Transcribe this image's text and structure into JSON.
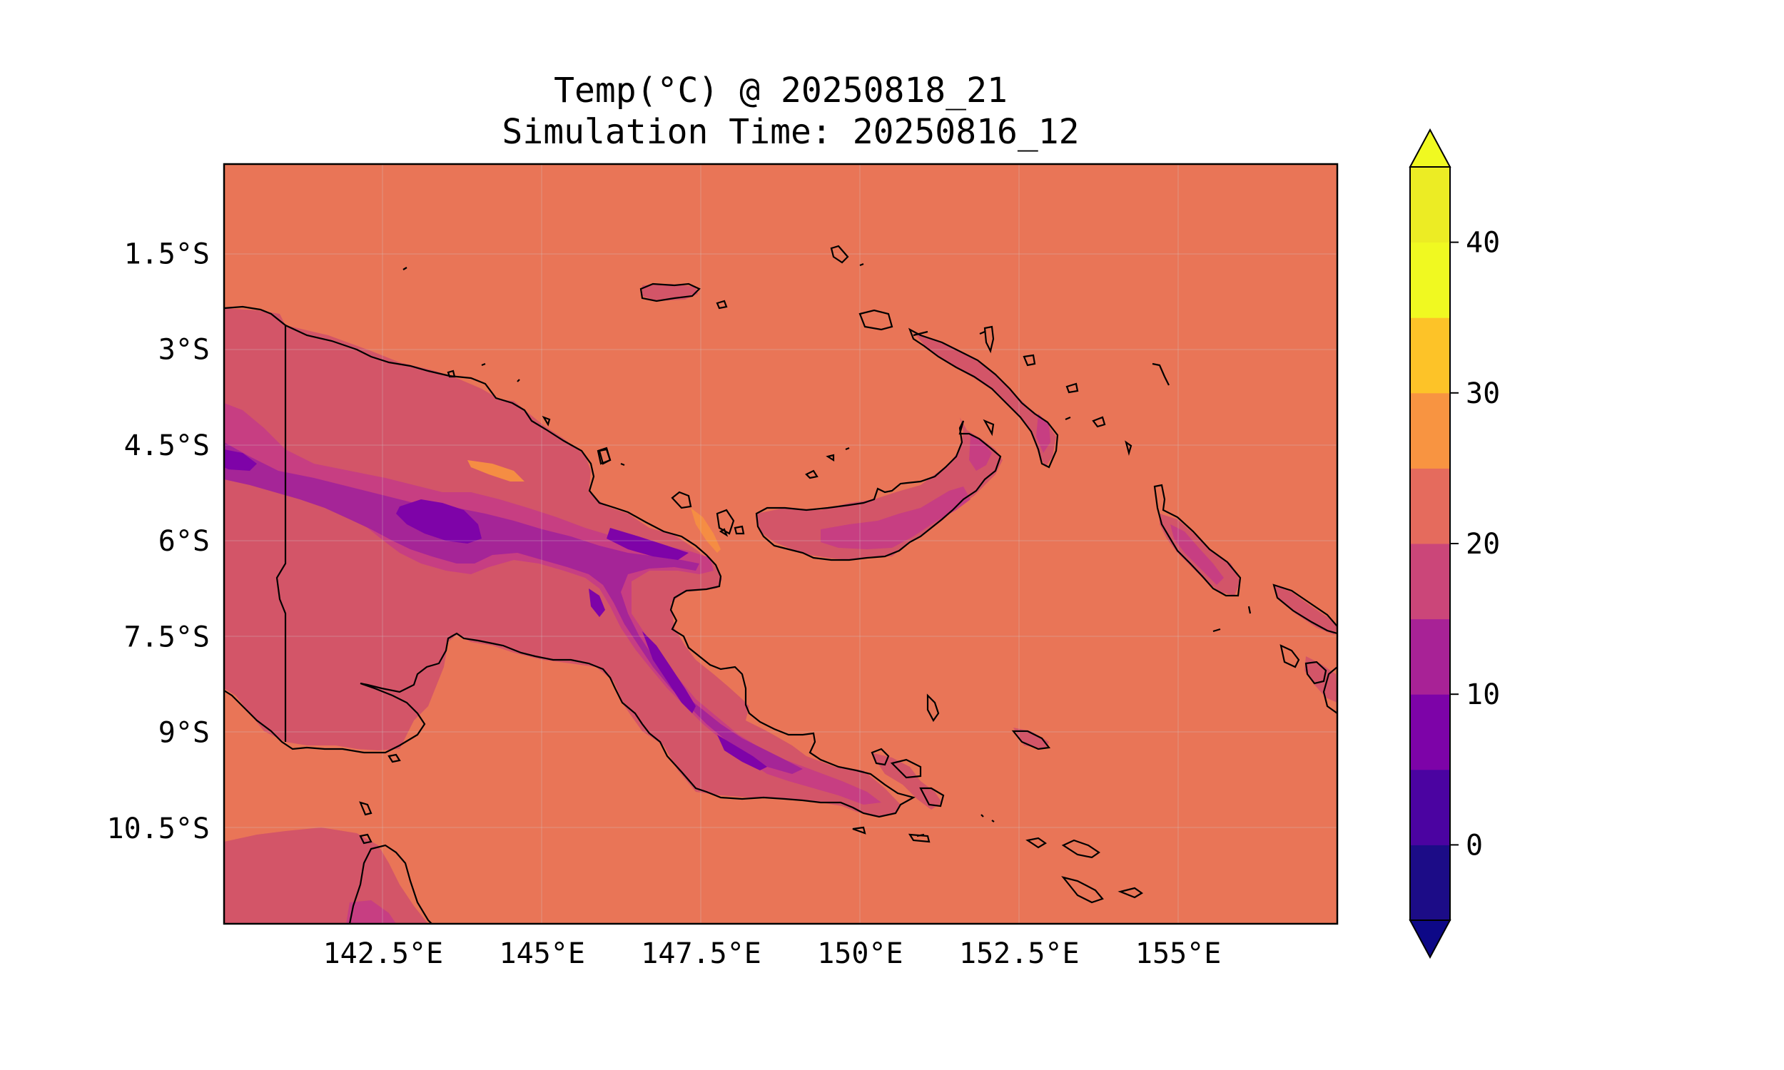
{
  "title": {
    "line1": "Temp(°C) @ 20250818_21",
    "line2": "Simulation Time: 20250816_12"
  },
  "map": {
    "lon_range": [
      140.0,
      157.5
    ],
    "lat_range": [
      -12.0,
      -0.1
    ],
    "x_ticks": [
      "142.5°E",
      "145°E",
      "147.5°E",
      "150°E",
      "152.5°E",
      "155°E"
    ],
    "x_tick_values": [
      142.5,
      145,
      147.5,
      150,
      152.5,
      155
    ],
    "y_ticks": [
      "1.5°S",
      "3°S",
      "4.5°S",
      "6°S",
      "7.5°S",
      "9°S",
      "10.5°S"
    ],
    "y_tick_values": [
      -1.5,
      -3,
      -4.5,
      -6,
      -7.5,
      -9,
      -10.5
    ],
    "grid": true,
    "background_level_color": "#e97557",
    "coastline_color": "#000000"
  },
  "colorbar": {
    "cmap": "plasma",
    "levels": [
      -5,
      0,
      5,
      10,
      15,
      20,
      25,
      30,
      35,
      40,
      45
    ],
    "colors": [
      "#1c0c87",
      "#4b03a1",
      "#7d03a8",
      "#a82296",
      "#cb4679",
      "#e56b5d",
      "#f89441",
      "#fdc328",
      "#f0f921",
      "#ecec24"
    ],
    "extend": "both",
    "under_color": "#0d0887",
    "over_color": "#f0f921",
    "tick_values": [
      0,
      10,
      20,
      30,
      40
    ],
    "tick_labels": [
      "0",
      "10",
      "20",
      "30",
      "40"
    ]
  }
}
